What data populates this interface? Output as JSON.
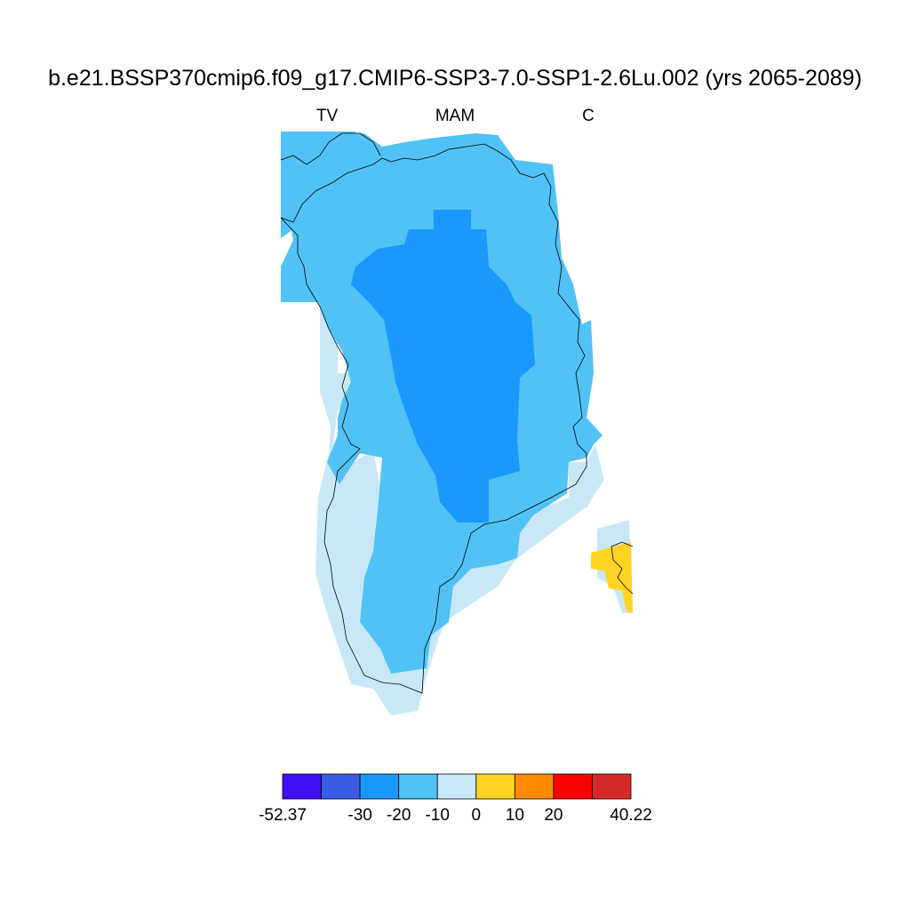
{
  "title": "b.e21.BSSP370cmip6.f09_g17.CMIP6-SSP3-7.0-SSP1-2.6Lu.002 (yrs 2065-2089)",
  "subtitle": {
    "left": "TV",
    "center": "MAM",
    "right": "C"
  },
  "legend": {
    "colors": [
      "#3f10f5",
      "#3a5be3",
      "#1a98fd",
      "#50c2f6",
      "#c9e8f7",
      "#ffd324",
      "#ff8a00",
      "#ff0000",
      "#d62a2a"
    ],
    "labels": [
      "-52.37",
      "",
      "-30",
      "-20",
      "-10",
      "0",
      "10",
      "20",
      "",
      "40.22"
    ]
  },
  "map_regions": [
    {
      "name": "land-ice-margin",
      "color": "#c9e8f7"
    },
    {
      "name": "coastal-belt",
      "color": "#50c2f6"
    },
    {
      "name": "interior-core",
      "color": "#1a98fd"
    },
    {
      "name": "iceland-warming",
      "color": "#ffd324"
    }
  ]
}
